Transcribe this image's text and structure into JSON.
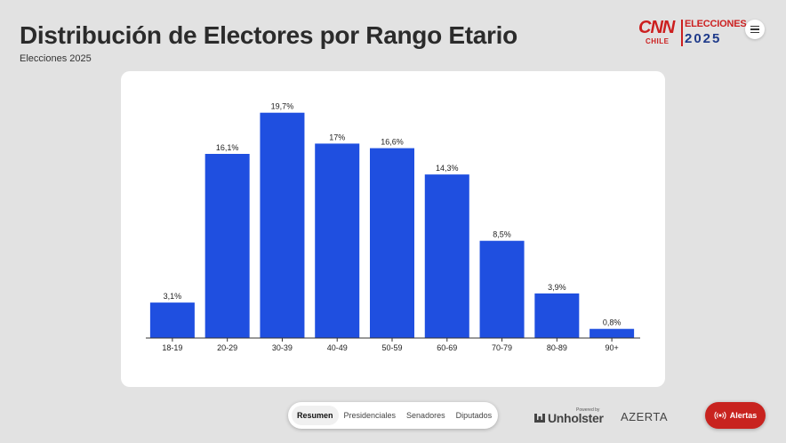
{
  "header": {
    "title": "Distribución de Electores por Rango Etario",
    "subtitle": "Elecciones 2025"
  },
  "logo": {
    "brand": "CNN",
    "country": "CHILE",
    "line1": "ELECCIONES",
    "line2": "2025"
  },
  "colors": {
    "bar": "#1f4fe0",
    "brand_red": "#cc1f1f",
    "brand_blue": "#1e3a8a",
    "alert": "#c8231f"
  },
  "chart_data": {
    "type": "bar",
    "categories": [
      "18-19",
      "20-29",
      "30-39",
      "40-49",
      "50-59",
      "60-69",
      "70-79",
      "80-89",
      "90+"
    ],
    "values": [
      3.1,
      16.1,
      19.7,
      17,
      16.6,
      14.3,
      8.5,
      3.9,
      0.8
    ],
    "data_labels": [
      "3,1%",
      "16,1%",
      "19,7%",
      "17%",
      "16,6%",
      "14,3%",
      "8,5%",
      "3,9%",
      "0,8%"
    ],
    "title": "",
    "xlabel": "",
    "ylabel": "",
    "ylim": [
      0,
      21
    ],
    "grid": false,
    "legend": "none"
  },
  "tabs": [
    {
      "label": "Resumen",
      "active": true
    },
    {
      "label": "Presidenciales",
      "active": false
    },
    {
      "label": "Senadores",
      "active": false
    },
    {
      "label": "Diputados",
      "active": false
    }
  ],
  "footer": {
    "powered_by": "Powered by",
    "unholster": "Unholster",
    "azerta": "AZERTA",
    "alert_label": "Alertas"
  }
}
